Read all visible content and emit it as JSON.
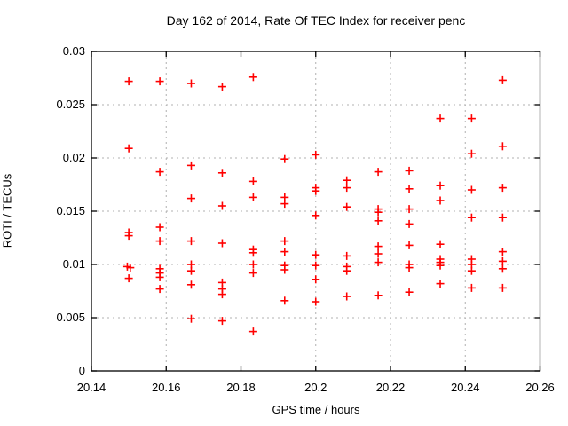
{
  "chart_data": {
    "type": "scatter",
    "title": "Day 162 of 2014, Rate Of TEC Index for receiver penc",
    "xlabel": "GPS time / hours",
    "ylabel": "ROTI / TECUs",
    "xlim": [
      20.14,
      20.26
    ],
    "ylim": [
      0,
      0.03
    ],
    "xticks": [
      20.14,
      20.16,
      20.18,
      20.2,
      20.22,
      20.24,
      20.26
    ],
    "xtick_labels": [
      "20.14",
      "20.16",
      "20.18",
      "20.2",
      "20.22",
      "20.24",
      "20.26"
    ],
    "yticks": [
      0,
      0.005,
      0.01,
      0.015,
      0.02,
      0.025,
      0.03
    ],
    "ytick_labels": [
      "0",
      "0.005",
      "0.01",
      "0.015",
      "0.02",
      "0.025",
      "0.03"
    ],
    "grid": true,
    "legend": "none",
    "marker": "plus",
    "colors": {
      "marker": "#ff0000",
      "grid": "#b0b0b0",
      "border": "#000000",
      "background": "#ffffff"
    },
    "series": [
      {
        "name": "ROTI",
        "points": [
          [
            20.15,
            0.0272
          ],
          [
            20.15,
            0.0209
          ],
          [
            20.15,
            0.013
          ],
          [
            20.15,
            0.0127
          ],
          [
            20.1496,
            0.0098
          ],
          [
            20.1504,
            0.0097
          ],
          [
            20.15,
            0.0087
          ],
          [
            20.1583,
            0.0272
          ],
          [
            20.1583,
            0.0187
          ],
          [
            20.1583,
            0.0135
          ],
          [
            20.1583,
            0.0122
          ],
          [
            20.1583,
            0.0096
          ],
          [
            20.1583,
            0.0092
          ],
          [
            20.1583,
            0.0088
          ],
          [
            20.1583,
            0.0077
          ],
          [
            20.1667,
            0.027
          ],
          [
            20.1667,
            0.0193
          ],
          [
            20.1667,
            0.0162
          ],
          [
            20.1667,
            0.0122
          ],
          [
            20.1667,
            0.01
          ],
          [
            20.1667,
            0.0094
          ],
          [
            20.1667,
            0.0081
          ],
          [
            20.1667,
            0.0049
          ],
          [
            20.175,
            0.0267
          ],
          [
            20.175,
            0.0186
          ],
          [
            20.175,
            0.0155
          ],
          [
            20.175,
            0.012
          ],
          [
            20.175,
            0.0083
          ],
          [
            20.175,
            0.0077
          ],
          [
            20.175,
            0.0072
          ],
          [
            20.175,
            0.0047
          ],
          [
            20.1833,
            0.0276
          ],
          [
            20.1833,
            0.0178
          ],
          [
            20.1833,
            0.0163
          ],
          [
            20.1833,
            0.0114
          ],
          [
            20.1833,
            0.0111
          ],
          [
            20.1833,
            0.01
          ],
          [
            20.1833,
            0.0092
          ],
          [
            20.1833,
            0.0037
          ],
          [
            20.1917,
            0.0199
          ],
          [
            20.1917,
            0.0163
          ],
          [
            20.1917,
            0.0157
          ],
          [
            20.1917,
            0.0122
          ],
          [
            20.1917,
            0.0112
          ],
          [
            20.1917,
            0.0099
          ],
          [
            20.1917,
            0.0095
          ],
          [
            20.1917,
            0.0066
          ],
          [
            20.2,
            0.0203
          ],
          [
            20.2,
            0.0172
          ],
          [
            20.2,
            0.0169
          ],
          [
            20.2,
            0.0146
          ],
          [
            20.2,
            0.0109
          ],
          [
            20.2,
            0.0099
          ],
          [
            20.2,
            0.0086
          ],
          [
            20.2,
            0.0065
          ],
          [
            20.2083,
            0.0179
          ],
          [
            20.2083,
            0.0172
          ],
          [
            20.2083,
            0.0154
          ],
          [
            20.2083,
            0.0108
          ],
          [
            20.2083,
            0.0098
          ],
          [
            20.2083,
            0.0094
          ],
          [
            20.2083,
            0.007
          ],
          [
            20.2167,
            0.0187
          ],
          [
            20.2167,
            0.0152
          ],
          [
            20.2167,
            0.0149
          ],
          [
            20.2167,
            0.0141
          ],
          [
            20.2167,
            0.0117
          ],
          [
            20.2167,
            0.011
          ],
          [
            20.2167,
            0.0102
          ],
          [
            20.2167,
            0.0071
          ],
          [
            20.225,
            0.0188
          ],
          [
            20.225,
            0.0171
          ],
          [
            20.225,
            0.0152
          ],
          [
            20.225,
            0.0138
          ],
          [
            20.225,
            0.0118
          ],
          [
            20.225,
            0.01
          ],
          [
            20.225,
            0.0097
          ],
          [
            20.225,
            0.0074
          ],
          [
            20.2333,
            0.0237
          ],
          [
            20.2333,
            0.0174
          ],
          [
            20.2333,
            0.016
          ],
          [
            20.2333,
            0.0119
          ],
          [
            20.2333,
            0.0105
          ],
          [
            20.2333,
            0.0102
          ],
          [
            20.2333,
            0.0099
          ],
          [
            20.2333,
            0.0082
          ],
          [
            20.2417,
            0.0237
          ],
          [
            20.2417,
            0.0204
          ],
          [
            20.2417,
            0.017
          ],
          [
            20.2417,
            0.0144
          ],
          [
            20.2417,
            0.0105
          ],
          [
            20.2417,
            0.01
          ],
          [
            20.2417,
            0.0094
          ],
          [
            20.2417,
            0.0078
          ],
          [
            20.25,
            0.0273
          ],
          [
            20.25,
            0.0211
          ],
          [
            20.25,
            0.0172
          ],
          [
            20.25,
            0.0144
          ],
          [
            20.25,
            0.0112
          ],
          [
            20.25,
            0.0103
          ],
          [
            20.25,
            0.0096
          ],
          [
            20.25,
            0.0078
          ]
        ]
      }
    ]
  }
}
